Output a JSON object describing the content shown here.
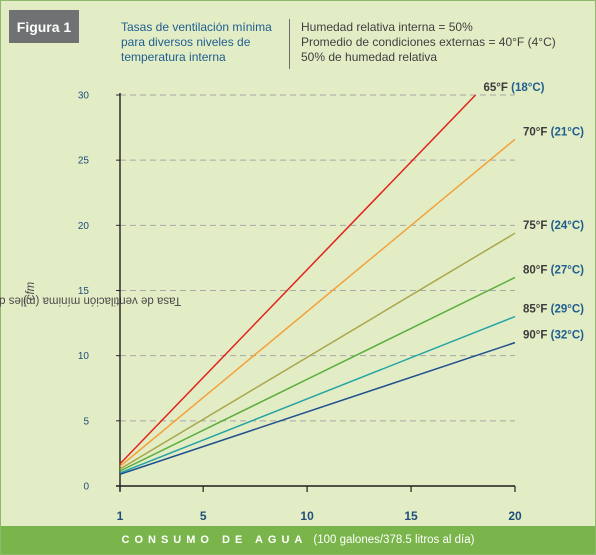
{
  "figure_badge": "Figura 1",
  "title_lines": [
    "Tasas de ventilación mínima",
    "para diversos niveles de",
    "temperatura interna"
  ],
  "conditions": [
    "Humedad relativa interna = 50%",
    "Promedio de condiciones externas = 40°F (4°C)",
    "50% de humedad relativa"
  ],
  "colors": {
    "background": "#e2edc6",
    "axis_bar": "#79b54a",
    "badge": "#6f7172",
    "title": "#1f5d8f",
    "grid": "#a8a8a8"
  },
  "chart_data": {
    "type": "line",
    "ylabel_main": "Tasa de ventilación mínima (miles de pies cúbicos por minuto ",
    "ylabel_unit": "cfm",
    "ylabel_close": ")",
    "xlabel_caps": "CONSUMO DE AGUA",
    "xlabel_rest": "(100 galones/378.5 litros al día)",
    "xlim": [
      1,
      20
    ],
    "ylim": [
      0,
      30
    ],
    "x_ticks": [
      "1",
      "5",
      "10",
      "15",
      "20"
    ],
    "x_tick_values": [
      1,
      5,
      10,
      15,
      20
    ],
    "y_ticks": [
      "0",
      "5",
      "10",
      "15",
      "20",
      "25",
      "30"
    ],
    "y_tick_values": [
      0,
      5,
      10,
      15,
      20,
      25,
      30
    ],
    "grid": "horizontal-dashed",
    "series": [
      {
        "name_f": "65°F",
        "name_c": "(18°C)",
        "color": "#e2231a",
        "points": [
          [
            1,
            1.7
          ],
          [
            18.1,
            30
          ]
        ]
      },
      {
        "name_f": "70°F",
        "name_c": "(21°C)",
        "color": "#f4a13a",
        "points": [
          [
            1,
            1.5
          ],
          [
            20,
            26.6
          ]
        ]
      },
      {
        "name_f": "75°F",
        "name_c": "(24°C)",
        "color": "#a9a74c",
        "points": [
          [
            1,
            1.3
          ],
          [
            20,
            19.4
          ]
        ]
      },
      {
        "name_f": "80°F",
        "name_c": "(27°C)",
        "color": "#5cae3e",
        "points": [
          [
            1,
            1.15
          ],
          [
            20,
            16.0
          ]
        ]
      },
      {
        "name_f": "85°F",
        "name_c": "(29°C)",
        "color": "#25a4a4",
        "points": [
          [
            1,
            1.0
          ],
          [
            20,
            13.0
          ]
        ]
      },
      {
        "name_f": "90°F",
        "name_c": "(32°C)",
        "color": "#1f4e8f",
        "points": [
          [
            1,
            0.9
          ],
          [
            20,
            11.0
          ]
        ]
      }
    ]
  }
}
